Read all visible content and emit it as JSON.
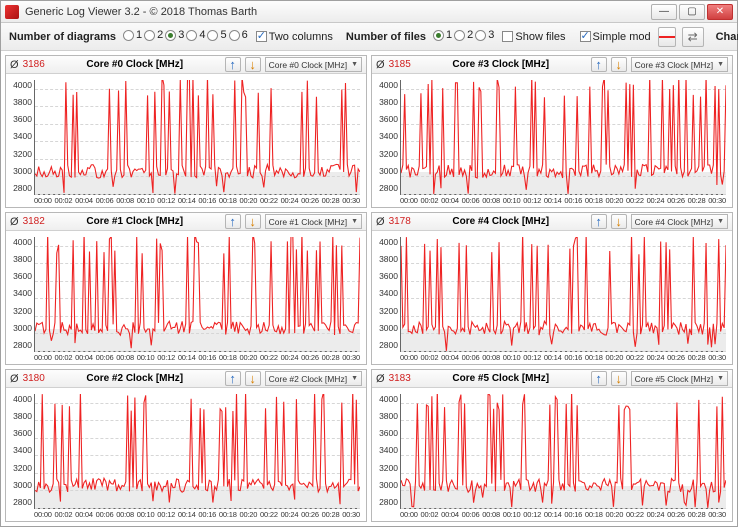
{
  "window": {
    "title": "Generic Log Viewer 3.2 - © 2018 Thomas Barth"
  },
  "toolbar": {
    "diagrams_label": "Number of diagrams",
    "diagrams_options": [
      "1",
      "2",
      "3",
      "4",
      "5",
      "6"
    ],
    "diagrams_selected_index": 2,
    "two_columns_label": "Two columns",
    "two_columns_checked": true,
    "files_label": "Number of files",
    "files_options": [
      "1",
      "2",
      "3"
    ],
    "files_selected_index": 0,
    "show_files_label": "Show files",
    "show_files_checked": false,
    "simple_mode_label": "Simple mod",
    "simple_mode_checked": true,
    "change_all_label": "Change all"
  },
  "chart_style": {
    "type": "line",
    "series_color": "#ee2222",
    "background_color": "#ffffff",
    "gridband_color": "#ececec",
    "hline_color": "#d6d6d6",
    "ylim_min": 2800,
    "ylim_max": 4100,
    "ytick_step": 200,
    "yticks": [
      "4000",
      "3800",
      "3600",
      "3400",
      "3200",
      "3000",
      "2800"
    ],
    "xticks": [
      "00:00",
      "00:02",
      "00:04",
      "00:06",
      "00:08",
      "00:10",
      "00:12",
      "00:14",
      "00:16",
      "00:18",
      "00:20",
      "00:22",
      "00:24",
      "00:26",
      "00:28",
      "00:30"
    ],
    "gridband_top_value": 3050,
    "label_fontsize": 8.5,
    "title_fontsize": 10
  },
  "panels": [
    {
      "avg": "3186",
      "title": "Core #0 Clock [MHz]",
      "combo": "Core #0 Clock [MHz]",
      "seed": 1
    },
    {
      "avg": "3185",
      "title": "Core #3 Clock [MHz]",
      "combo": "Core #3 Clock [MHz]",
      "seed": 2
    },
    {
      "avg": "3182",
      "title": "Core #1 Clock [MHz]",
      "combo": "Core #1 Clock [MHz]",
      "seed": 3
    },
    {
      "avg": "3178",
      "title": "Core #4 Clock [MHz]",
      "combo": "Core #4 Clock [MHz]",
      "seed": 4
    },
    {
      "avg": "3180",
      "title": "Core #2 Clock [MHz]",
      "combo": "Core #2 Clock [MHz]",
      "seed": 5
    },
    {
      "avg": "3183",
      "title": "Core #5 Clock [MHz]",
      "combo": "Core #5 Clock [MHz]",
      "seed": 6
    }
  ]
}
